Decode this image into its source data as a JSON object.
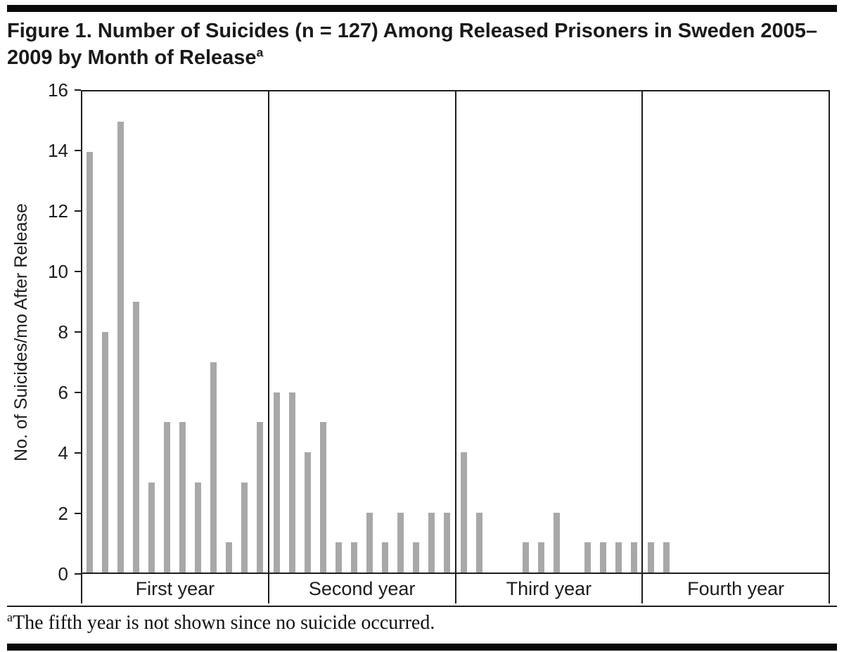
{
  "figure": {
    "title": "Figure 1. Number of Suicides (n = 127) Among Released Prisoners in Sweden 2005–2009 by Month of Release",
    "title_superscript": "a",
    "footnote_marker": "a",
    "footnote": "The fifth year is not shown since no suicide occurred."
  },
  "chart_data": {
    "type": "bar",
    "title": "Figure 1. Number of Suicides (n = 127) Among Released Prisoners in Sweden 2005–2009 by Month of Release",
    "n_total": 127,
    "xlabel": "",
    "ylabel": "No. of Suicides/mo After Release",
    "ylim": [
      0,
      16
    ],
    "yticks": [
      0,
      2,
      4,
      6,
      8,
      10,
      12,
      14,
      16
    ],
    "bar_color": "#a8a8a8",
    "axis_color": "#1d1d1b",
    "grid": "vertical year dividers only, outer box frame",
    "months_per_section": 12,
    "x_sections": [
      "First year",
      "Second year",
      "Third year",
      "Fourth year"
    ],
    "groups": [
      {
        "label": "First year",
        "values": [
          14,
          8,
          15,
          9,
          3,
          5,
          5,
          3,
          7,
          1,
          3,
          5
        ]
      },
      {
        "label": "Second year",
        "values": [
          6,
          6,
          4,
          5,
          1,
          1,
          2,
          1,
          2,
          1,
          2,
          2
        ]
      },
      {
        "label": "Third year",
        "values": [
          4,
          2,
          0,
          0,
          1,
          1,
          2,
          0,
          1,
          1,
          1,
          1
        ]
      },
      {
        "label": "Fourth year",
        "values": [
          1,
          1,
          0,
          0,
          0,
          0,
          0,
          0,
          0,
          0,
          0,
          0
        ]
      }
    ]
  }
}
